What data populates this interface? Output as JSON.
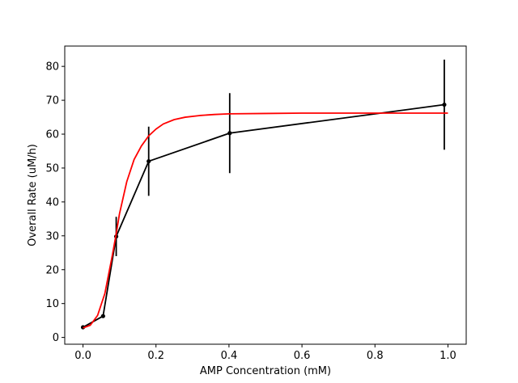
{
  "chart_data": {
    "type": "line",
    "title": "",
    "xlabel": "AMP Concentration (mM)",
    "ylabel": "Overall Rate (uM/h)",
    "xlim": [
      -0.05,
      1.05
    ],
    "ylim": [
      -2,
      86
    ],
    "xticks": [
      "0.0",
      "0.2",
      "0.4",
      "0.6",
      "0.8",
      "1.0"
    ],
    "yticks": [
      "0",
      "10",
      "20",
      "30",
      "40",
      "50",
      "60",
      "70",
      "80"
    ],
    "grid": false,
    "legend": "none",
    "series": [
      {
        "kind": "line-with-errorbars",
        "color": "#000000",
        "x": [
          0.0,
          0.055,
          0.091,
          0.18,
          0.402,
          0.99
        ],
        "y": [
          3.0,
          6.3,
          29.8,
          52.0,
          60.3,
          68.7
        ],
        "yerr": [
          0.0,
          0.0,
          5.8,
          10.2,
          11.8,
          13.3
        ]
      },
      {
        "kind": "fit-curve",
        "color": "#ff0000",
        "x": [
          0.0,
          0.02,
          0.04,
          0.06,
          0.08,
          0.09,
          0.1,
          0.12,
          0.14,
          0.16,
          0.18,
          0.2,
          0.22,
          0.25,
          0.28,
          0.32,
          0.36,
          0.4,
          0.5,
          0.6,
          0.7,
          0.8,
          0.9,
          1.0
        ],
        "y": [
          2.8,
          3.6,
          6.5,
          13.0,
          24.0,
          30.0,
          36.5,
          46.0,
          52.5,
          56.5,
          59.5,
          61.5,
          63.0,
          64.3,
          65.0,
          65.5,
          65.8,
          66.0,
          66.1,
          66.2,
          66.2,
          66.2,
          66.2,
          66.2
        ]
      }
    ]
  }
}
